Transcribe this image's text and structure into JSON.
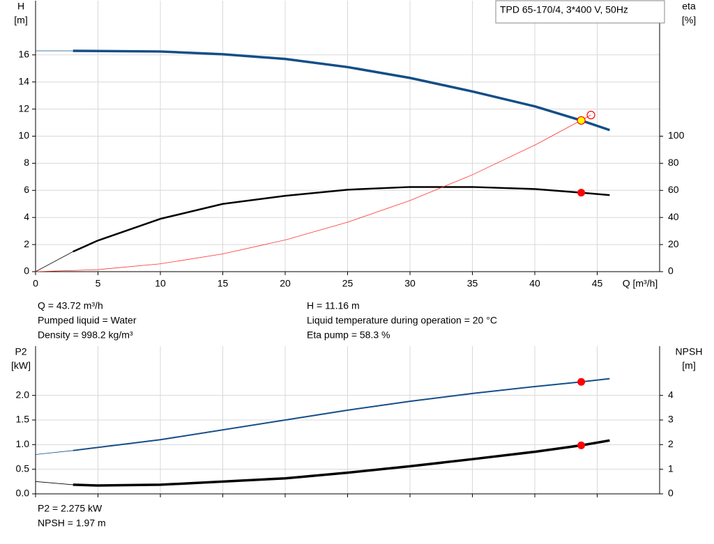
{
  "chart_data": [
    {
      "type": "line",
      "legend_text": "TPD 65-170/4, 3*400 V, 50Hz",
      "ylabel": [
        "H",
        "[m]"
      ],
      "y2label": [
        "eta",
        "[%]"
      ],
      "xlabel": "Q [m³/h]",
      "xlim": [
        0,
        50
      ],
      "xticks": [
        0,
        5,
        10,
        15,
        20,
        25,
        30,
        35,
        40,
        45
      ],
      "ylim": [
        0,
        20
      ],
      "yticks": [
        0,
        2,
        4,
        6,
        8,
        10,
        12,
        14,
        16
      ],
      "y2lim": [
        0,
        200
      ],
      "y2ticks": [
        0,
        20,
        40,
        60,
        80,
        100
      ],
      "grid": true,
      "series": [
        {
          "color": "#144e87",
          "linewidth": 3.5,
          "x": [
            0,
            3,
            10,
            15,
            20,
            25,
            30,
            35,
            40,
            43.72,
            46
          ],
          "values": [
            16.3,
            16.3,
            16.25,
            16.05,
            15.7,
            15.1,
            14.3,
            13.3,
            12.2,
            11.16,
            10.45
          ]
        },
        {
          "color": "#000000",
          "linewidth": 2.5,
          "axis": "y2",
          "x": [
            0,
            3,
            5,
            10,
            15,
            20,
            25,
            30,
            35,
            40,
            43.72,
            46
          ],
          "values": [
            0,
            14.8,
            23,
            39,
            50,
            56,
            60.5,
            62.5,
            62.5,
            61,
            58.3,
            56.5
          ]
        },
        {
          "color": "#ff3030",
          "linewidth": 0.8,
          "x": [
            0,
            5,
            10,
            15,
            20,
            25,
            30,
            35,
            40,
            44.5
          ],
          "values": [
            0,
            0.15,
            0.58,
            1.31,
            2.34,
            3.65,
            5.25,
            7.15,
            9.34,
            11.56
          ]
        }
      ],
      "points": [
        {
          "x": 43.72,
          "value": 11.16,
          "color": "#ffff00"
        },
        {
          "x": 43.72,
          "value": 58.3,
          "axis": "y2",
          "color": "#ff0000"
        },
        {
          "x": 44.5,
          "value": 11.56,
          "color": "none"
        }
      ],
      "info_left": [
        "Q = 43.72 m³/h",
        "Pumped liquid = Water",
        "Density = 998.2 kg/m³"
      ],
      "info_right": [
        "H = 11.16 m",
        "Liquid temperature during operation = 20 °C",
        "Eta pump = 58.3 %"
      ]
    },
    {
      "type": "line",
      "ylabel": [
        "P2",
        "[kW]"
      ],
      "y2label": [
        "NPSH",
        "[m]"
      ],
      "xlim": [
        0,
        50
      ],
      "xticks": [
        0,
        5,
        10,
        15,
        20,
        25,
        30,
        35,
        40,
        45
      ],
      "ylim": [
        0,
        3
      ],
      "yticks": [
        {
          "value": 0,
          "label": "0.0"
        },
        0.5,
        {
          "value": 1,
          "label": "1.0"
        },
        1.5,
        {
          "value": 2,
          "label": "2.0"
        }
      ],
      "y2lim": [
        0,
        6
      ],
      "y2ticks": [
        0,
        1,
        2,
        3,
        4
      ],
      "grid": true,
      "series": [
        {
          "color": "#144e87",
          "linewidth": 2,
          "x": [
            0,
            3,
            10,
            20,
            25,
            30,
            35,
            40,
            43.72,
            46
          ],
          "values": [
            0.8,
            0.88,
            1.1,
            1.5,
            1.7,
            1.88,
            2.04,
            2.18,
            2.275,
            2.34
          ]
        },
        {
          "color": "#000000",
          "linewidth": 3.5,
          "axis": "y2",
          "x": [
            0,
            3,
            5,
            10,
            20,
            25,
            30,
            35,
            40,
            43.72,
            46
          ],
          "values": [
            0.5,
            0.37,
            0.34,
            0.37,
            0.63,
            0.86,
            1.12,
            1.41,
            1.71,
            1.97,
            2.17
          ]
        }
      ],
      "points": [
        {
          "x": 43.72,
          "value": 2.275,
          "color": "#ff0000"
        },
        {
          "x": 43.72,
          "value": 1.97,
          "axis": "y2",
          "color": "#ff0000"
        }
      ],
      "info_left": [
        "P2 = 2.275 kW",
        "NPSH = 1.97 m"
      ]
    }
  ]
}
